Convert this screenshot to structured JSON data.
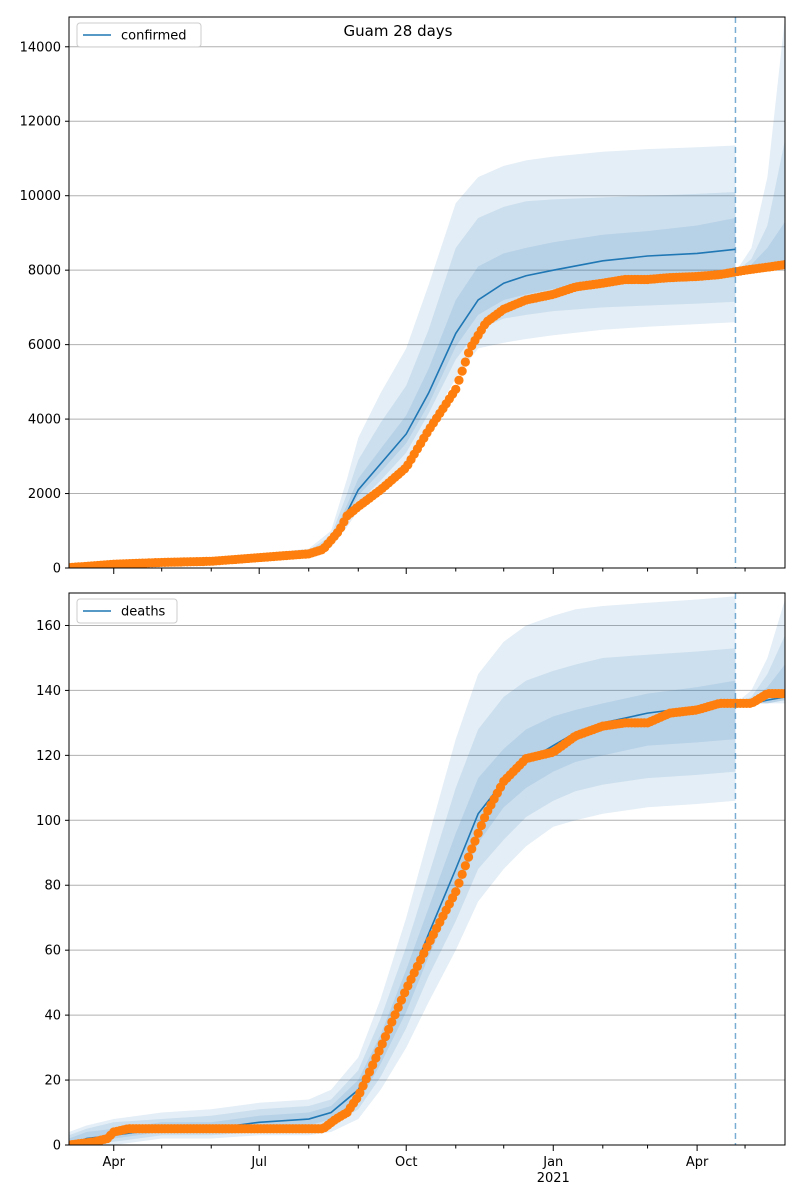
{
  "figure": {
    "title": "Guam 28 days"
  },
  "colors": {
    "model": "#1f77b4",
    "observed": "#ff7f0e",
    "band": "#1f77b4",
    "grid": "#b0b0b0"
  },
  "x_axis": {
    "ticks": [
      {
        "date": "2020-04-01",
        "label": "Apr",
        "sublabel": ""
      },
      {
        "date": "2020-07-01",
        "label": "Jul",
        "sublabel": ""
      },
      {
        "date": "2020-10-01",
        "label": "Oct",
        "sublabel": ""
      },
      {
        "date": "2021-01-01",
        "label": "Jan",
        "sublabel": "2021"
      },
      {
        "date": "2021-04-01",
        "label": "Apr",
        "sublabel": ""
      }
    ],
    "minor_ticks": [
      "2020-05-01",
      "2020-06-01",
      "2020-08-01",
      "2020-09-01",
      "2020-11-01",
      "2020-12-01",
      "2021-02-01",
      "2021-03-01",
      "2021-05-01"
    ],
    "range": [
      "2020-03-04",
      "2021-05-26"
    ],
    "forecast_line": "2021-04-25"
  },
  "chart_data": [
    {
      "type": "line",
      "legend": "confirmed",
      "legend_position": "top-left",
      "grid": "horizontal",
      "ylim": [
        0,
        14800
      ],
      "yticks": [
        0,
        2000,
        4000,
        6000,
        8000,
        10000,
        12000,
        14000
      ],
      "model": {
        "dates": [
          "2020-03-04",
          "2020-04-01",
          "2020-05-01",
          "2020-06-01",
          "2020-07-01",
          "2020-08-01",
          "2020-08-15",
          "2020-08-25",
          "2020-09-01",
          "2020-09-15",
          "2020-10-01",
          "2020-10-15",
          "2020-11-01",
          "2020-11-15",
          "2020-12-01",
          "2020-12-15",
          "2021-01-01",
          "2021-02-01",
          "2021-03-01",
          "2021-04-01",
          "2021-04-25"
        ],
        "values": [
          0,
          50,
          150,
          200,
          300,
          400,
          700,
          1500,
          2100,
          2800,
          3600,
          4700,
          6300,
          7200,
          7650,
          7850,
          8000,
          8250,
          8380,
          8450,
          8560
        ]
      },
      "bands": [
        {
          "lower": [
            0,
            30,
            100,
            150,
            220,
            300,
            550,
            1100,
            1550,
            2100,
            2800,
            3800,
            5100,
            5900,
            6050,
            6150,
            6250,
            6400,
            6480,
            6550,
            6600
          ],
          "upper": [
            0,
            70,
            200,
            260,
            380,
            520,
            1000,
            2400,
            3500,
            4700,
            5900,
            7600,
            9800,
            10500,
            10800,
            10950,
            11050,
            11180,
            11250,
            11300,
            11350
          ]
        },
        {
          "lower": [
            0,
            35,
            115,
            170,
            245,
            330,
            600,
            1250,
            1750,
            2350,
            3100,
            4150,
            5600,
            6400,
            6700,
            6800,
            6900,
            7000,
            7050,
            7100,
            7150
          ],
          "upper": [
            0,
            60,
            180,
            235,
            340,
            470,
            870,
            2000,
            2900,
            3900,
            4900,
            6400,
            8600,
            9400,
            9700,
            9850,
            9900,
            9950,
            10000,
            10050,
            10100
          ]
        },
        {
          "lower": [
            0,
            40,
            130,
            185,
            270,
            360,
            650,
            1380,
            1950,
            2580,
            3350,
            4400,
            5950,
            6800,
            7200,
            7350,
            7500,
            7650,
            7700,
            7750,
            7800
          ],
          "upper": [
            0,
            55,
            165,
            215,
            320,
            430,
            770,
            1700,
            2400,
            3200,
            4100,
            5350,
            7200,
            8100,
            8450,
            8600,
            8750,
            8950,
            9050,
            9200,
            9400
          ]
        }
      ],
      "post": {
        "dates": [
          "2021-04-25",
          "2021-05-05",
          "2021-05-15",
          "2021-05-26"
        ],
        "center": [
          7950,
          8050,
          8120,
          8250
        ],
        "bands": [
          {
            "lower": [
              7950,
              8000,
              8050,
              8100
            ],
            "upper": [
              7950,
              8600,
              10500,
              14800
            ]
          },
          {
            "lower": [
              7950,
              8020,
              8070,
              8150
            ],
            "upper": [
              7950,
              8300,
              9200,
              11500
            ]
          },
          {
            "lower": [
              7950,
              8030,
              8090,
              8200
            ],
            "upper": [
              7950,
              8150,
              8600,
              9300
            ]
          }
        ]
      },
      "observed": {
        "dates": [
          "2020-03-04",
          "2020-04-01",
          "2020-05-01",
          "2020-06-01",
          "2020-07-01",
          "2020-08-01",
          "2020-08-10",
          "2020-08-20",
          "2020-08-25",
          "2020-09-01",
          "2020-09-15",
          "2020-10-01",
          "2020-10-15",
          "2020-11-01",
          "2020-11-10",
          "2020-11-20",
          "2020-12-01",
          "2020-12-15",
          "2021-01-01",
          "2021-01-15",
          "2021-02-01",
          "2021-02-15",
          "2021-03-01",
          "2021-03-15",
          "2021-04-01",
          "2021-04-15",
          "2021-05-01",
          "2021-05-15",
          "2021-05-26"
        ],
        "values": [
          10,
          100,
          150,
          180,
          280,
          380,
          500,
          1000,
          1400,
          1650,
          2100,
          2700,
          3700,
          4800,
          5900,
          6600,
          6950,
          7200,
          7350,
          7550,
          7650,
          7750,
          7750,
          7800,
          7830,
          7880,
          8000,
          8080,
          8150
        ]
      }
    },
    {
      "type": "line",
      "legend": "deaths",
      "legend_position": "top-left",
      "grid": "horizontal",
      "ylim": [
        0,
        170
      ],
      "yticks": [
        0,
        20,
        40,
        60,
        80,
        100,
        120,
        140,
        160
      ],
      "model": {
        "dates": [
          "2020-03-04",
          "2020-03-15",
          "2020-04-01",
          "2020-05-01",
          "2020-06-01",
          "2020-07-01",
          "2020-08-01",
          "2020-08-15",
          "2020-09-01",
          "2020-09-15",
          "2020-10-01",
          "2020-10-15",
          "2020-11-01",
          "2020-11-15",
          "2020-12-01",
          "2020-12-15",
          "2021-01-01",
          "2021-01-15",
          "2021-02-01",
          "2021-03-01",
          "2021-04-01",
          "2021-04-25"
        ],
        "values": [
          0,
          2,
          3,
          5,
          5,
          7,
          8,
          10,
          17,
          30,
          48,
          65,
          85,
          102,
          112,
          118,
          123,
          127,
          130,
          133,
          135,
          136
        ]
      },
      "bands": [
        {
          "lower": [
            0,
            0,
            0,
            2,
            2,
            3,
            3,
            4,
            8,
            17,
            30,
            44,
            60,
            75,
            85,
            92,
            98,
            100,
            102,
            104,
            105,
            106
          ],
          "upper": [
            4,
            6,
            8,
            10,
            11,
            13,
            14,
            17,
            27,
            45,
            70,
            95,
            125,
            145,
            155,
            160,
            163,
            165,
            166,
            167,
            168,
            169
          ]
        },
        {
          "lower": [
            0,
            0,
            1,
            3,
            3,
            4,
            5,
            6,
            11,
            21,
            36,
            52,
            69,
            85,
            94,
            101,
            106,
            109,
            111,
            113,
            114,
            115
          ],
          "upper": [
            3,
            5,
            7,
            8,
            9,
            11,
            12,
            14,
            23,
            39,
            61,
            83,
            110,
            128,
            138,
            143,
            146,
            148,
            150,
            151,
            152,
            153
          ]
        },
        {
          "lower": [
            0,
            1,
            2,
            4,
            4,
            5,
            6,
            8,
            13,
            25,
            41,
            58,
            77,
            93,
            104,
            110,
            115,
            118,
            120,
            123,
            124,
            125
          ],
          "upper": [
            2,
            4,
            5,
            7,
            7,
            9,
            10,
            12,
            20,
            34,
            54,
            73,
            96,
            113,
            122,
            128,
            132,
            134,
            136,
            139,
            141,
            143
          ]
        }
      ],
      "post": {
        "dates": [
          "2021-04-25",
          "2021-05-05",
          "2021-05-15",
          "2021-05-26"
        ],
        "center": [
          136,
          136,
          137,
          138
        ],
        "bands": [
          {
            "lower": [
              136,
              136,
              136,
              136
            ],
            "upper": [
              136,
              140,
              150,
              168
            ]
          },
          {
            "lower": [
              136,
              136,
              136,
              137
            ],
            "upper": [
              136,
              138,
              145,
              157
            ]
          },
          {
            "lower": [
              136,
              136,
              136,
              137
            ],
            "upper": [
              136,
              137,
              141,
              148
            ]
          }
        ]
      },
      "observed": {
        "dates": [
          "2020-03-04",
          "2020-03-20",
          "2020-03-28",
          "2020-04-01",
          "2020-04-10",
          "2020-05-01",
          "2020-06-01",
          "2020-07-01",
          "2020-08-01",
          "2020-08-10",
          "2020-08-18",
          "2020-08-25",
          "2020-09-01",
          "2020-09-15",
          "2020-10-01",
          "2020-10-15",
          "2020-11-01",
          "2020-11-10",
          "2020-11-20",
          "2020-12-01",
          "2020-12-15",
          "2021-01-01",
          "2021-01-15",
          "2021-02-01",
          "2021-02-15",
          "2021-03-01",
          "2021-03-15",
          "2021-04-01",
          "2021-04-15",
          "2021-04-25",
          "2021-05-05",
          "2021-05-15",
          "2021-05-26"
        ],
        "values": [
          0,
          1,
          2,
          4,
          5,
          5,
          5,
          5,
          5,
          5,
          8,
          10,
          15,
          30,
          48,
          62,
          78,
          90,
          102,
          112,
          119,
          121,
          126,
          129,
          130,
          130,
          133,
          134,
          136,
          136,
          136,
          139,
          139
        ]
      }
    }
  ]
}
